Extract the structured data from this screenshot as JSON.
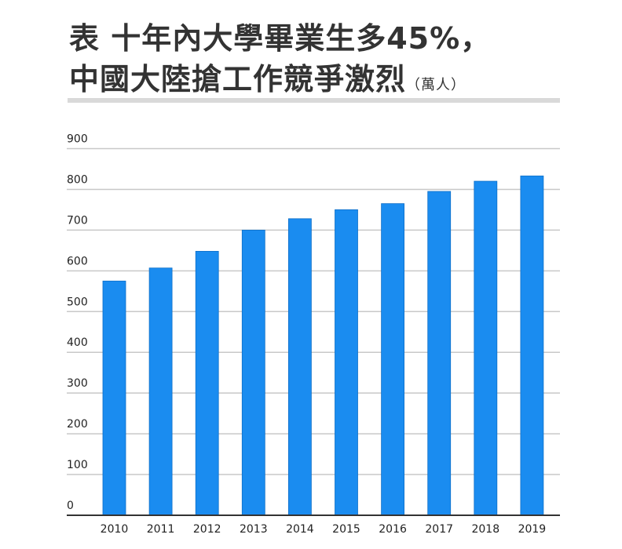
{
  "title_line1": "表 十年內大學畢業生多45%，",
  "title_line2": "中國大陸搶工作競爭激烈",
  "unit": "（萬人）",
  "chart_data": {
    "type": "bar",
    "categories": [
      "2010",
      "2011",
      "2012",
      "2013",
      "2014",
      "2015",
      "2016",
      "2017",
      "2018",
      "2019"
    ],
    "values": [
      575,
      607,
      648,
      700,
      728,
      750,
      765,
      795,
      820,
      833
    ],
    "ylim": [
      0,
      900
    ],
    "yticks": [
      0,
      100,
      200,
      300,
      400,
      500,
      600,
      700,
      800,
      900
    ],
    "grid": true,
    "bar_color": "#1a8cf0"
  }
}
